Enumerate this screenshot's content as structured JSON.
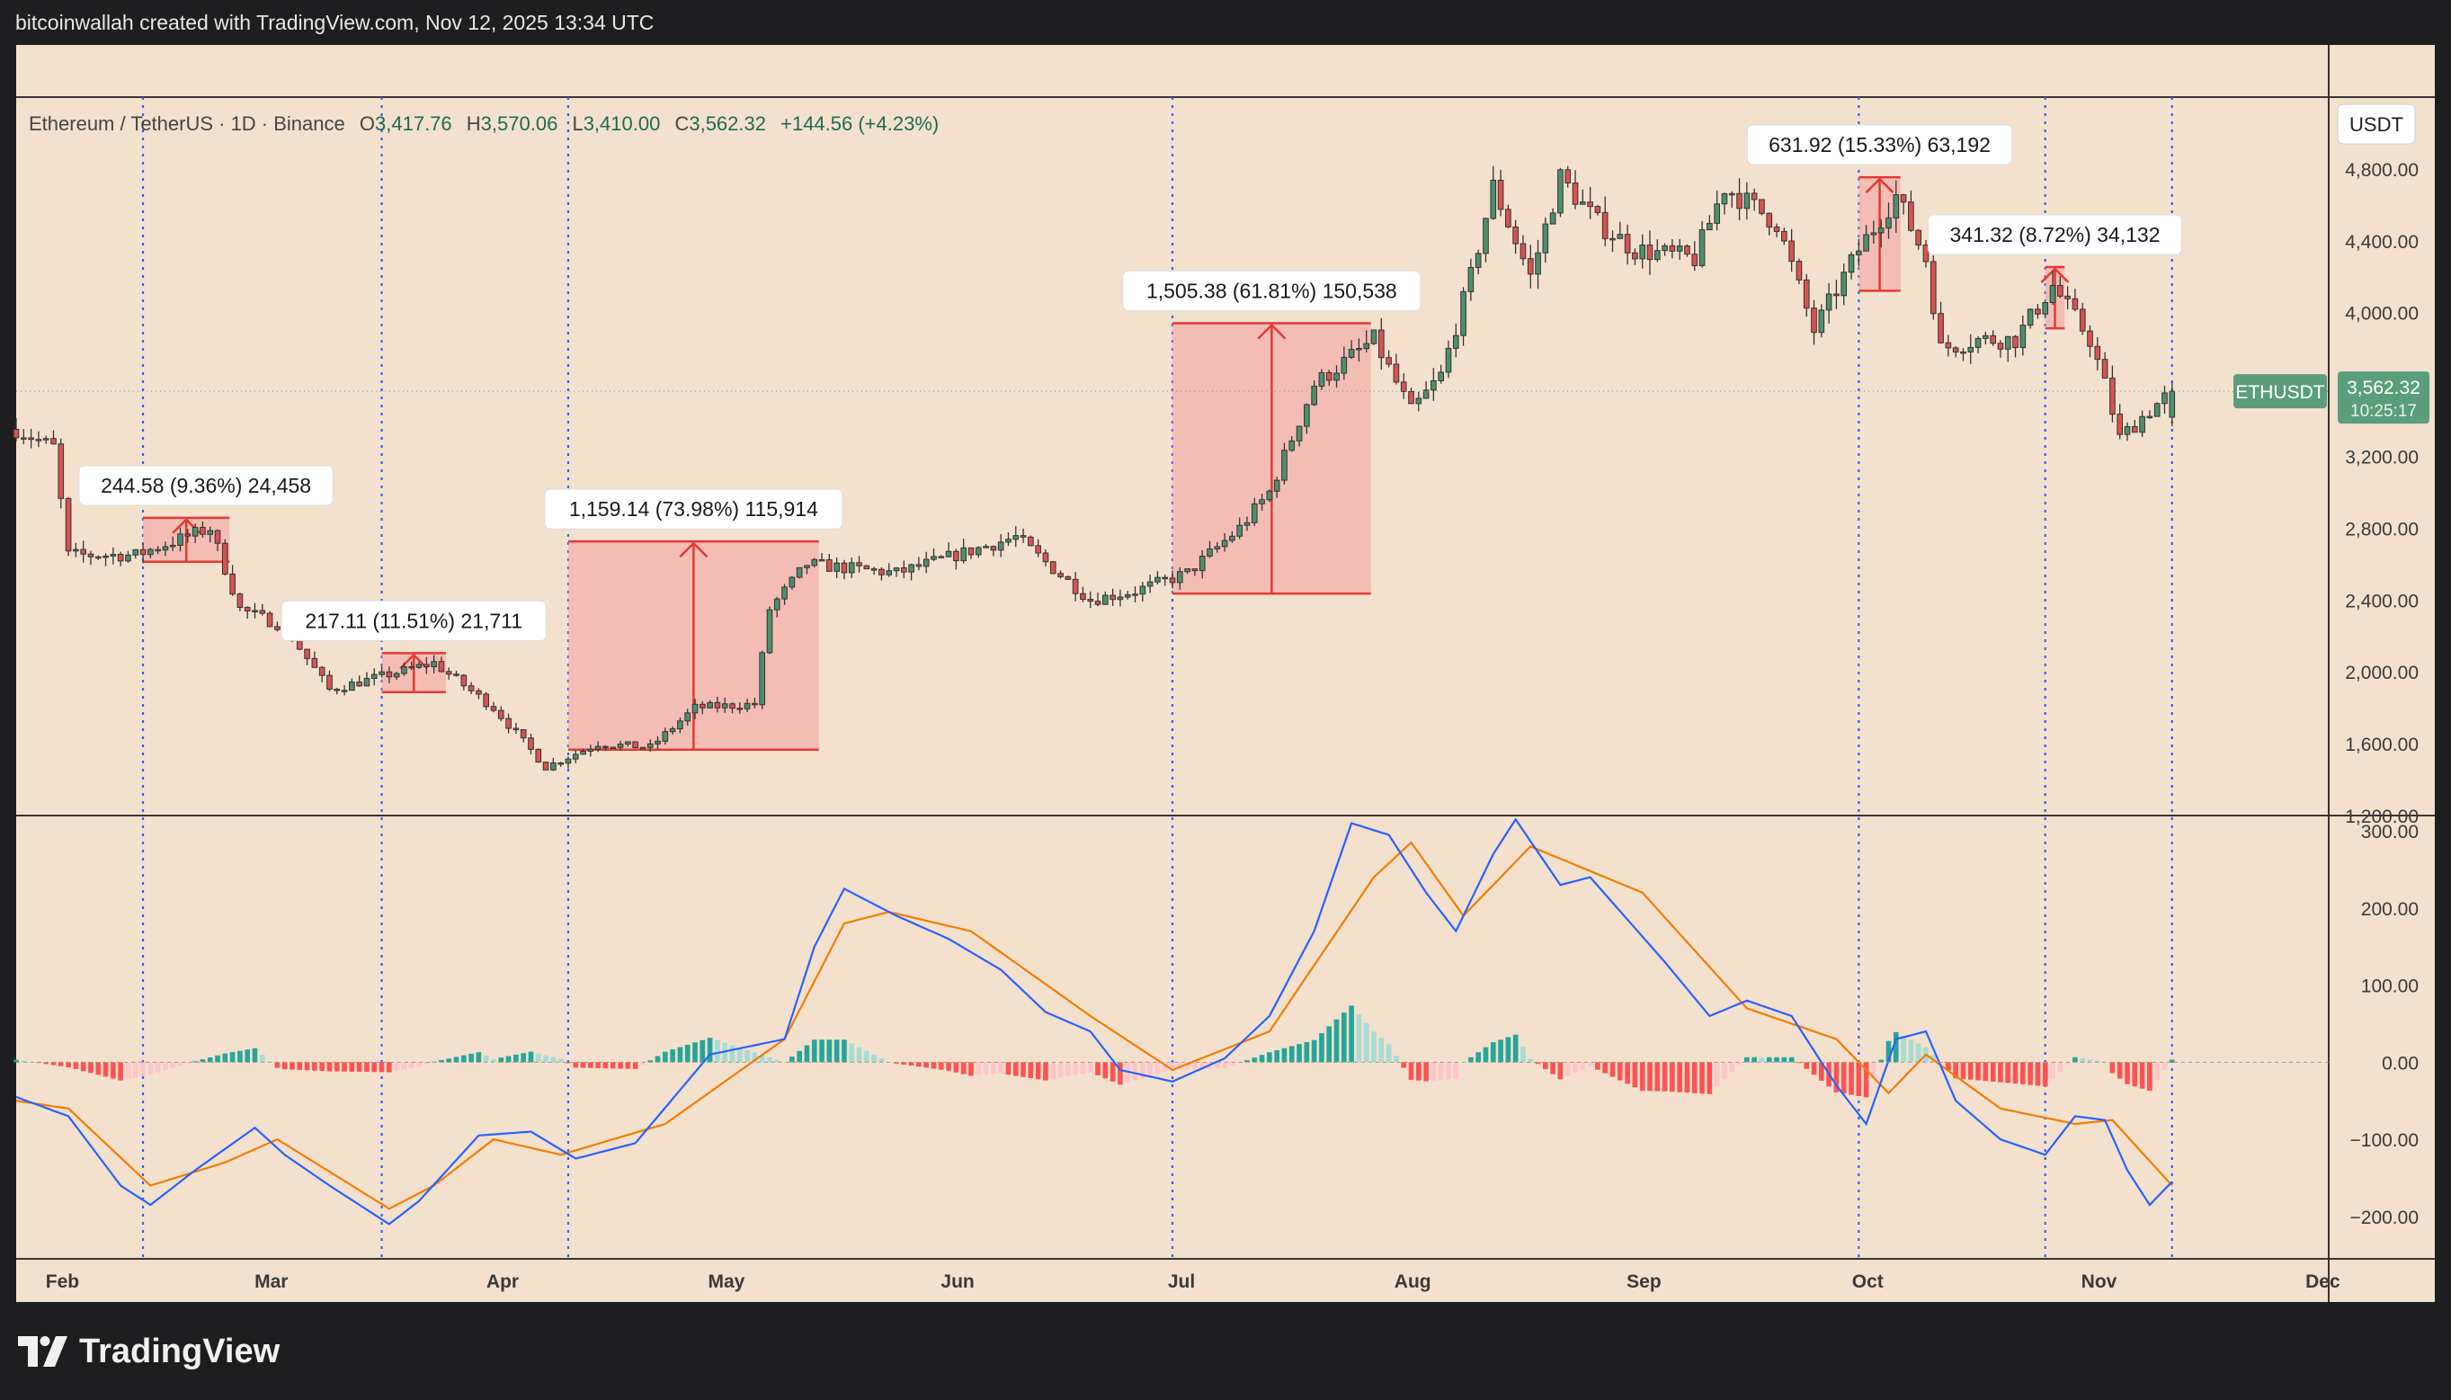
{
  "header": {
    "caption": "bitcoinwallah created with TradingView.com, Nov 12, 2025 13:34 UTC"
  },
  "branding": {
    "logo_text": "TradingView",
    "logo_icon": "tradingview-logo-icon"
  },
  "colors": {
    "background": "#f3e1cd",
    "up": "#26a69a",
    "down": "#ef5350",
    "macd_line": "#2962ff",
    "signal_line": "#f57c00",
    "measure_fill": "#f3a0a0",
    "measure_line": "#e53935",
    "price_tag": "#5a9e7c"
  },
  "chart_data": [
    {
      "type": "candlestick",
      "title": "Ethereum / TetherUS · 1D · Binance",
      "ohlc_readout": {
        "o_label": "O",
        "o": "3,417.76",
        "h_label": "H",
        "h": "3,570.06",
        "l_label": "L",
        "l": "3,410.00",
        "c_label": "C",
        "c": "3,562.32",
        "change": "+144.56 (+4.23%)"
      },
      "currency": "USDT",
      "ylim": [
        1200,
        5200
      ],
      "y_ticks": [
        "4,800.00",
        "4,400.00",
        "4,000.00",
        "3,600.00",
        "3,200.00",
        "2,800.00",
        "2,400.00",
        "2,000.00",
        "1,600.00",
        "1,200.00"
      ],
      "x_ticks": [
        "Feb",
        "Mar",
        "Apr",
        "May",
        "Jun",
        "Jul",
        "Aug",
        "Sep",
        "Oct",
        "Nov",
        "Dec"
      ],
      "x_range": [
        "2025-01-27",
        "2025-12-03"
      ],
      "last_price": {
        "symbol": "ETHUSDT",
        "price": "3,562.32",
        "countdown": "10:25:17",
        "value": 3562.32
      },
      "anchor_path": [
        [
          "2025-01-27",
          3350
        ],
        [
          "2025-02-01",
          3250
        ],
        [
          "2025-02-03",
          2650
        ],
        [
          "2025-02-12",
          2650
        ],
        [
          "2025-02-22",
          2800
        ],
        [
          "2025-02-26",
          2350
        ],
        [
          "2025-03-04",
          2250
        ],
        [
          "2025-03-10",
          1900
        ],
        [
          "2025-03-24",
          2050
        ],
        [
          "2025-04-01",
          1800
        ],
        [
          "2025-04-08",
          1470
        ],
        [
          "2025-04-15",
          1600
        ],
        [
          "2025-04-22",
          1580
        ],
        [
          "2025-04-28",
          1800
        ],
        [
          "2025-05-06",
          1820
        ],
        [
          "2025-05-08",
          2350
        ],
        [
          "2025-05-13",
          2600
        ],
        [
          "2025-05-25",
          2550
        ],
        [
          "2025-06-10",
          2750
        ],
        [
          "2025-06-20",
          2400
        ],
        [
          "2025-06-26",
          2450
        ],
        [
          "2025-07-03",
          2550
        ],
        [
          "2025-07-10",
          2800
        ],
        [
          "2025-07-14",
          3000
        ],
        [
          "2025-07-20",
          3600
        ],
        [
          "2025-07-28",
          3850
        ],
        [
          "2025-08-02",
          3450
        ],
        [
          "2025-08-06",
          3650
        ],
        [
          "2025-08-10",
          4200
        ],
        [
          "2025-08-13",
          4700
        ],
        [
          "2025-08-18",
          4200
        ],
        [
          "2025-08-22",
          4750
        ],
        [
          "2025-08-27",
          4500
        ],
        [
          "2025-09-01",
          4350
        ],
        [
          "2025-09-09",
          4300
        ],
        [
          "2025-09-13",
          4700
        ],
        [
          "2025-09-20",
          4500
        ],
        [
          "2025-09-25",
          3900
        ],
        [
          "2025-10-01",
          4350
        ],
        [
          "2025-10-06",
          4650
        ],
        [
          "2025-10-10",
          4300
        ],
        [
          "2025-10-12",
          3800
        ],
        [
          "2025-10-17",
          3850
        ],
        [
          "2025-10-22",
          3850
        ],
        [
          "2025-10-27",
          4150
        ],
        [
          "2025-11-01",
          3850
        ],
        [
          "2025-11-03",
          3600
        ],
        [
          "2025-11-05",
          3300
        ],
        [
          "2025-11-08",
          3420
        ],
        [
          "2025-11-12",
          3562
        ]
      ],
      "measures": [
        {
          "label": "244.58 (9.36%) 24,458",
          "start": "2025-02-13",
          "end": "2025-02-24",
          "low": 2613,
          "high": 2858
        },
        {
          "label": "217.11 (11.51%) 21,711",
          "start": "2025-03-17",
          "end": "2025-03-25",
          "low": 1887,
          "high": 2104
        },
        {
          "label": "1,159.14 (73.98%) 115,914",
          "start": "2025-04-11",
          "end": "2025-05-14",
          "low": 1567,
          "high": 2726
        },
        {
          "label": "1,505.38 (61.81%) 150,538",
          "start": "2025-07-01",
          "end": "2025-07-27",
          "low": 2436,
          "high": 3941
        },
        {
          "label": "631.92 (15.33%) 63,192",
          "start": "2025-10-01",
          "end": "2025-10-06",
          "low": 4122,
          "high": 4754
        },
        {
          "label": "341.32 (8.72%) 34,132",
          "start": "2025-10-26",
          "end": "2025-10-28",
          "low": 3913,
          "high": 4254
        }
      ]
    },
    {
      "type": "macd",
      "ylim": [
        -255,
        320
      ],
      "y_ticks": [
        "300.00",
        "200.00",
        "100.00",
        "0.00",
        "−100.00",
        "−200.00"
      ],
      "macd_anchors": [
        [
          "2025-01-27",
          -45
        ],
        [
          "2025-02-03",
          -70
        ],
        [
          "2025-02-10",
          -160
        ],
        [
          "2025-02-14",
          -185
        ],
        [
          "2025-02-20",
          -140
        ],
        [
          "2025-02-28",
          -85
        ],
        [
          "2025-03-04",
          -120
        ],
        [
          "2025-03-10",
          -160
        ],
        [
          "2025-03-18",
          -210
        ],
        [
          "2025-03-22",
          -180
        ],
        [
          "2025-03-30",
          -95
        ],
        [
          "2025-04-06",
          -90
        ],
        [
          "2025-04-12",
          -125
        ],
        [
          "2025-04-20",
          -105
        ],
        [
          "2025-04-30",
          10
        ],
        [
          "2025-05-10",
          30
        ],
        [
          "2025-05-14",
          150
        ],
        [
          "2025-05-18",
          225
        ],
        [
          "2025-05-25",
          190
        ],
        [
          "2025-06-01",
          160
        ],
        [
          "2025-06-08",
          120
        ],
        [
          "2025-06-14",
          65
        ],
        [
          "2025-06-20",
          40
        ],
        [
          "2025-06-24",
          -10
        ],
        [
          "2025-07-01",
          -25
        ],
        [
          "2025-07-08",
          5
        ],
        [
          "2025-07-14",
          60
        ],
        [
          "2025-07-20",
          170
        ],
        [
          "2025-07-25",
          310
        ],
        [
          "2025-07-30",
          295
        ],
        [
          "2025-08-04",
          220
        ],
        [
          "2025-08-08",
          170
        ],
        [
          "2025-08-13",
          270
        ],
        [
          "2025-08-16",
          315
        ],
        [
          "2025-08-22",
          230
        ],
        [
          "2025-08-26",
          240
        ],
        [
          "2025-09-05",
          130
        ],
        [
          "2025-09-11",
          60
        ],
        [
          "2025-09-16",
          80
        ],
        [
          "2025-09-22",
          60
        ],
        [
          "2025-09-28",
          -30
        ],
        [
          "2025-10-02",
          -80
        ],
        [
          "2025-10-06",
          30
        ],
        [
          "2025-10-10",
          40
        ],
        [
          "2025-10-14",
          -50
        ],
        [
          "2025-10-20",
          -100
        ],
        [
          "2025-10-26",
          -120
        ],
        [
          "2025-10-30",
          -70
        ],
        [
          "2025-11-03",
          -75
        ],
        [
          "2025-11-06",
          -140
        ],
        [
          "2025-11-09",
          -185
        ],
        [
          "2025-11-12",
          -155
        ]
      ],
      "signal_anchors": [
        [
          "2025-01-27",
          -50
        ],
        [
          "2025-02-03",
          -60
        ],
        [
          "2025-02-14",
          -160
        ],
        [
          "2025-02-24",
          -130
        ],
        [
          "2025-03-03",
          -100
        ],
        [
          "2025-03-18",
          -190
        ],
        [
          "2025-03-24",
          -160
        ],
        [
          "2025-04-01",
          -100
        ],
        [
          "2025-04-10",
          -120
        ],
        [
          "2025-04-24",
          -80
        ],
        [
          "2025-05-10",
          30
        ],
        [
          "2025-05-18",
          180
        ],
        [
          "2025-05-24",
          195
        ],
        [
          "2025-06-04",
          170
        ],
        [
          "2025-06-20",
          60
        ],
        [
          "2025-07-01",
          -10
        ],
        [
          "2025-07-14",
          40
        ],
        [
          "2025-07-28",
          240
        ],
        [
          "2025-08-02",
          285
        ],
        [
          "2025-08-09",
          190
        ],
        [
          "2025-08-18",
          280
        ],
        [
          "2025-09-02",
          220
        ],
        [
          "2025-09-16",
          70
        ],
        [
          "2025-09-28",
          30
        ],
        [
          "2025-10-05",
          -40
        ],
        [
          "2025-10-10",
          10
        ],
        [
          "2025-10-20",
          -60
        ],
        [
          "2025-10-30",
          -80
        ],
        [
          "2025-11-04",
          -75
        ],
        [
          "2025-11-12",
          -160
        ]
      ]
    }
  ]
}
